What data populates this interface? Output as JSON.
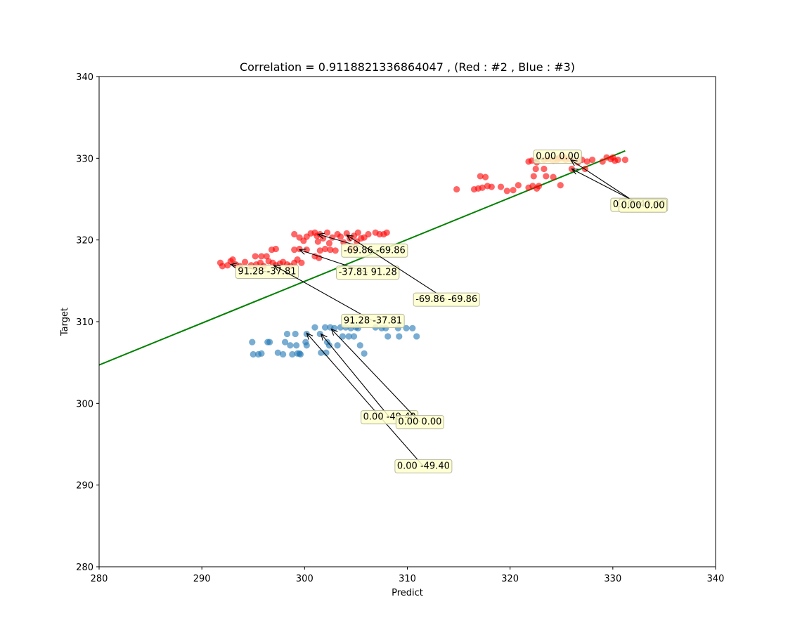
{
  "chart_data": {
    "type": "scatter",
    "title": "Correlation = 0.9118821336864047 ,  (Red : #2 , Blue : #3)",
    "xlabel": "Predict",
    "ylabel": "Target",
    "xlim": [
      280,
      340
    ],
    "ylim": [
      280,
      340
    ],
    "xticks": [
      "280",
      "290",
      "300",
      "310",
      "320",
      "330",
      "340"
    ],
    "yticks": [
      "280",
      "290",
      "300",
      "310",
      "320",
      "330",
      "340"
    ],
    "grid": false,
    "colors": {
      "red": "#ff0000",
      "blue": "#1f77b4",
      "fit": "#008000"
    },
    "series": [
      {
        "color": "red",
        "points": [
          [
            291.8,
            317.2
          ],
          [
            292.0,
            316.8
          ],
          [
            292.5,
            316.9
          ],
          [
            292.8,
            317.4
          ],
          [
            293.0,
            317.6
          ],
          [
            293.3,
            317.0
          ],
          [
            293.7,
            316.8
          ],
          [
            294.2,
            317.3
          ],
          [
            294.8,
            316.9
          ],
          [
            295.3,
            317.0
          ],
          [
            295.7,
            317.2
          ],
          [
            296.0,
            316.8
          ],
          [
            296.5,
            317.4
          ],
          [
            296.9,
            317.2
          ],
          [
            297.2,
            316.9
          ],
          [
            297.6,
            317.1
          ],
          [
            297.9,
            317.3
          ],
          [
            298.3,
            317.0
          ],
          [
            298.6,
            316.8
          ],
          [
            299.0,
            317.2
          ],
          [
            299.3,
            317.6
          ],
          [
            299.7,
            317.2
          ],
          [
            295.2,
            318.0
          ],
          [
            295.8,
            318.0
          ],
          [
            296.3,
            318.0
          ],
          [
            296.8,
            318.8
          ],
          [
            297.2,
            318.9
          ],
          [
            299.0,
            318.8
          ],
          [
            299.5,
            318.9
          ],
          [
            300.2,
            318.8
          ],
          [
            301.5,
            318.7
          ],
          [
            302.0,
            318.9
          ],
          [
            302.5,
            318.8
          ],
          [
            301.0,
            318.0
          ],
          [
            301.4,
            317.8
          ],
          [
            299.0,
            320.7
          ],
          [
            299.5,
            320.3
          ],
          [
            299.9,
            319.9
          ],
          [
            300.2,
            320.4
          ],
          [
            300.6,
            320.8
          ],
          [
            301.0,
            320.9
          ],
          [
            301.2,
            320.5
          ],
          [
            301.5,
            320.7
          ],
          [
            301.8,
            320.2
          ],
          [
            302.2,
            320.9
          ],
          [
            302.7,
            320.3
          ],
          [
            303.2,
            320.7
          ],
          [
            303.5,
            320.4
          ],
          [
            304.1,
            320.8
          ],
          [
            304.4,
            320.2
          ],
          [
            304.8,
            320.5
          ],
          [
            305.2,
            320.9
          ],
          [
            305.5,
            320.2
          ],
          [
            305.8,
            320.3
          ],
          [
            306.2,
            320.7
          ],
          [
            306.9,
            320.9
          ],
          [
            307.3,
            320.7
          ],
          [
            307.7,
            320.7
          ],
          [
            308.0,
            320.9
          ],
          [
            301.3,
            319.8
          ],
          [
            302.4,
            319.6
          ],
          [
            303.8,
            319.7
          ],
          [
            304.6,
            319.2
          ],
          [
            305.1,
            319.8
          ],
          [
            303.0,
            318.7
          ],
          [
            304.7,
            318.8
          ],
          [
            314.8,
            326.2
          ],
          [
            316.5,
            326.2
          ],
          [
            316.9,
            326.3
          ],
          [
            317.3,
            326.4
          ],
          [
            317.8,
            326.6
          ],
          [
            318.2,
            326.5
          ],
          [
            319.1,
            326.5
          ],
          [
            319.7,
            326.0
          ],
          [
            320.3,
            326.1
          ],
          [
            320.8,
            326.7
          ],
          [
            321.8,
            326.4
          ],
          [
            322.2,
            326.6
          ],
          [
            322.6,
            326.3
          ],
          [
            322.8,
            326.6
          ],
          [
            324.9,
            326.7
          ],
          [
            317.1,
            327.8
          ],
          [
            317.6,
            327.7
          ],
          [
            322.3,
            327.8
          ],
          [
            323.5,
            327.8
          ],
          [
            324.2,
            327.7
          ],
          [
            322.5,
            328.7
          ],
          [
            323.3,
            328.7
          ],
          [
            326.0,
            328.7
          ],
          [
            327.3,
            328.7
          ],
          [
            321.8,
            329.6
          ],
          [
            322.1,
            329.7
          ],
          [
            322.6,
            329.5
          ],
          [
            323.3,
            329.8
          ],
          [
            324.2,
            329.7
          ],
          [
            324.6,
            329.8
          ],
          [
            325.0,
            330.0
          ],
          [
            325.4,
            329.8
          ],
          [
            325.8,
            329.9
          ],
          [
            326.2,
            329.7
          ],
          [
            326.6,
            329.5
          ],
          [
            327.0,
            329.8
          ],
          [
            327.5,
            329.6
          ],
          [
            328.0,
            329.8
          ],
          [
            329.0,
            329.6
          ],
          [
            329.4,
            330.1
          ],
          [
            329.8,
            329.9
          ],
          [
            330.2,
            329.7
          ],
          [
            330.5,
            329.8
          ],
          [
            331.2,
            329.8
          ],
          [
            330.0,
            330.1
          ],
          [
            324.7,
            330.0
          ],
          [
            325.3,
            330.1
          ],
          [
            323.7,
            329.9
          ]
        ]
      },
      {
        "color": "blue",
        "points": [
          [
            294.9,
            307.5
          ],
          [
            295.0,
            306.0
          ],
          [
            295.5,
            306.0
          ],
          [
            295.8,
            306.1
          ],
          [
            296.4,
            307.5
          ],
          [
            296.6,
            307.5
          ],
          [
            297.4,
            306.2
          ],
          [
            297.9,
            306.0
          ],
          [
            298.1,
            307.5
          ],
          [
            298.3,
            308.5
          ],
          [
            298.6,
            307.1
          ],
          [
            298.8,
            306.0
          ],
          [
            299.1,
            308.5
          ],
          [
            299.2,
            307.1
          ],
          [
            299.3,
            306.1
          ],
          [
            299.5,
            306.1
          ],
          [
            299.6,
            306.0
          ],
          [
            300.1,
            307.5
          ],
          [
            300.2,
            307.1
          ],
          [
            300.2,
            308.5
          ],
          [
            301.0,
            309.3
          ],
          [
            301.5,
            308.5
          ],
          [
            301.6,
            306.2
          ],
          [
            302.0,
            309.3
          ],
          [
            302.1,
            306.2
          ],
          [
            302.2,
            307.5
          ],
          [
            302.4,
            307.1
          ],
          [
            302.5,
            309.3
          ],
          [
            302.9,
            309.2
          ],
          [
            303.2,
            307.1
          ],
          [
            303.5,
            309.3
          ],
          [
            303.7,
            308.2
          ],
          [
            304.0,
            309.3
          ],
          [
            304.3,
            308.2
          ],
          [
            304.5,
            309.2
          ],
          [
            304.8,
            308.2
          ],
          [
            305.0,
            309.3
          ],
          [
            305.2,
            309.2
          ],
          [
            305.4,
            307.1
          ],
          [
            305.8,
            306.1
          ],
          [
            306.9,
            309.3
          ],
          [
            307.5,
            309.2
          ],
          [
            307.9,
            309.2
          ],
          [
            308.1,
            308.2
          ],
          [
            309.1,
            309.2
          ],
          [
            309.2,
            308.2
          ],
          [
            309.9,
            309.2
          ],
          [
            310.5,
            309.2
          ],
          [
            310.9,
            308.2
          ]
        ]
      }
    ],
    "fit_line": {
      "x": [
        280,
        331.2
      ],
      "y": [
        304.7,
        330.9
      ]
    },
    "annotations": [
      {
        "text": "91.28 -37.81",
        "xy": [
          292.8,
          317.0
        ],
        "xytext": [
          293.5,
          315.8
        ]
      },
      {
        "text": "-37.81 91.28",
        "xy": [
          299.5,
          318.8
        ],
        "xytext": [
          303.3,
          315.7
        ]
      },
      {
        "text": "-69.86 -69.86",
        "xy": [
          301.3,
          320.7
        ],
        "xytext": [
          303.8,
          318.4
        ]
      },
      {
        "text": "-69.86 -69.86",
        "xy": [
          304.1,
          320.6
        ],
        "xytext": [
          310.8,
          312.4
        ]
      },
      {
        "text": "91.28 -37.81",
        "xy": [
          297.0,
          316.9
        ],
        "xytext": [
          303.8,
          309.8
        ]
      },
      {
        "text": "0.00 -49.40",
        "xy": [
          300.2,
          308.6
        ],
        "xytext": [
          309.0,
          292.0
        ]
      },
      {
        "text": "0.00 -49.40",
        "xy": [
          301.6,
          308.5
        ],
        "xytext": [
          305.7,
          298.0
        ]
      },
      {
        "text": "0.00 0.00",
        "xy": [
          302.6,
          309.1
        ],
        "xytext": [
          309.1,
          297.4
        ]
      },
      {
        "text": "0.00 0.00",
        "xy": [
          322.3,
          329.7
        ],
        "xytext": [
          322.5,
          329.9
        ]
      },
      {
        "text": "0.00 -49.40",
        "xy": [
          325.9,
          329.8
        ],
        "xytext": [
          330.0,
          324.0
        ]
      },
      {
        "text": "0.00 0.00",
        "xy": [
          326.0,
          328.7
        ],
        "xytext": [
          330.8,
          323.9
        ]
      }
    ]
  }
}
